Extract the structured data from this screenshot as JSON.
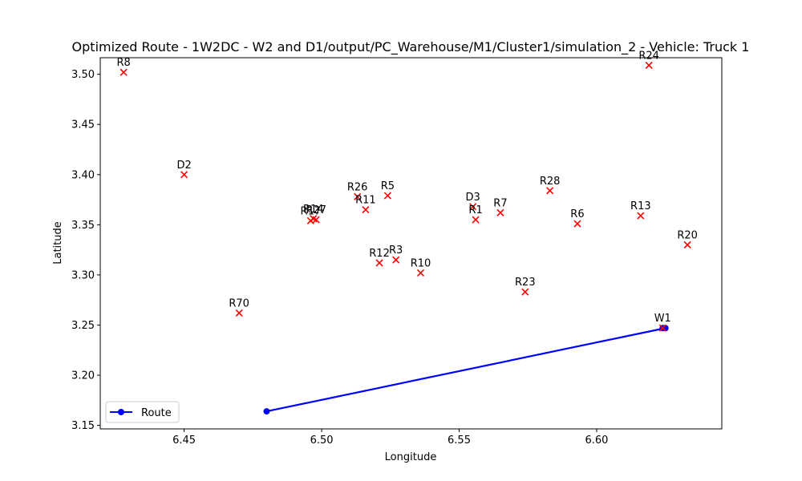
{
  "chart_data": {
    "type": "scatter",
    "title": "Optimized Route - 1W2DC - W2 and D1/output/PC_Warehouse/M1/Cluster1/simulation_2 - Vehicle: Truck 1",
    "xlabel": "Longitude",
    "ylabel": "Latitude",
    "xlim": [
      6.4195,
      6.6455
    ],
    "ylim": [
      3.1465,
      3.5165
    ],
    "xticks": [
      6.45,
      6.5,
      6.55,
      6.6
    ],
    "xtick_labels": [
      "6.45",
      "6.50",
      "6.55",
      "6.60"
    ],
    "yticks": [
      3.15,
      3.2,
      3.25,
      3.3,
      3.35,
      3.4,
      3.45,
      3.5
    ],
    "ytick_labels": [
      "3.15",
      "3.20",
      "3.25",
      "3.30",
      "3.35",
      "3.40",
      "3.45",
      "3.50"
    ],
    "grid": false,
    "points": [
      {
        "label": "R8",
        "x": 6.428,
        "y": 3.502
      },
      {
        "label": "R24",
        "x": 6.619,
        "y": 3.509
      },
      {
        "label": "D2",
        "x": 6.45,
        "y": 3.4
      },
      {
        "label": "R26",
        "x": 6.513,
        "y": 3.378
      },
      {
        "label": "R5",
        "x": 6.524,
        "y": 3.379
      },
      {
        "label": "R11",
        "x": 6.516,
        "y": 3.365
      },
      {
        "label": "R14",
        "x": 6.497,
        "y": 3.356
      },
      {
        "label": "R27",
        "x": 6.498,
        "y": 3.355
      },
      {
        "label": "R17",
        "x": 6.496,
        "y": 3.354
      },
      {
        "label": "D3",
        "x": 6.555,
        "y": 3.368
      },
      {
        "label": "R1",
        "x": 6.556,
        "y": 3.355
      },
      {
        "label": "R7",
        "x": 6.565,
        "y": 3.362
      },
      {
        "label": "R28",
        "x": 6.583,
        "y": 3.384
      },
      {
        "label": "R6",
        "x": 6.593,
        "y": 3.351
      },
      {
        "label": "R13",
        "x": 6.616,
        "y": 3.359
      },
      {
        "label": "R20",
        "x": 6.633,
        "y": 3.33
      },
      {
        "label": "R12",
        "x": 6.521,
        "y": 3.312
      },
      {
        "label": "R3",
        "x": 6.527,
        "y": 3.315
      },
      {
        "label": "R10",
        "x": 6.536,
        "y": 3.302
      },
      {
        "label": "R23",
        "x": 6.574,
        "y": 3.283
      },
      {
        "label": "R70",
        "x": 6.47,
        "y": 3.262
      },
      {
        "label": "W1",
        "x": 6.624,
        "y": 3.247
      }
    ],
    "series": [
      {
        "name": "Route",
        "color": "#0000ff",
        "x": [
          6.48,
          6.625,
          6.624
        ],
        "y": [
          3.164,
          3.247,
          3.247
        ]
      }
    ],
    "point_color": "#ff0000",
    "legend_position": "lower-left"
  }
}
